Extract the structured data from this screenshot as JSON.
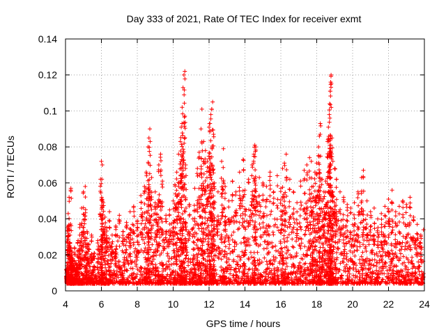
{
  "chart_data": {
    "type": "scatter",
    "title": "Day 333 of 2021, Rate Of TEC Index for receiver exmt",
    "xlabel": "GPS time / hours",
    "ylabel": "ROTI / TECUs",
    "xlim": [
      4,
      24
    ],
    "ylim": [
      0,
      0.14
    ],
    "xticks": [
      4,
      6,
      8,
      10,
      12,
      14,
      16,
      18,
      20,
      22,
      24
    ],
    "yticks": [
      0,
      0.02,
      0.04,
      0.06,
      0.08,
      0.1,
      0.12,
      0.14
    ],
    "xtick_labels": [
      "4",
      "6",
      "8",
      "10",
      "12",
      "14",
      "16",
      "18",
      "20",
      "22",
      "24"
    ],
    "ytick_labels": [
      "0",
      "0.02",
      "0.04",
      "0.06",
      "0.08",
      "0.1",
      "0.12",
      "0.14"
    ],
    "grid": true,
    "marker": "+",
    "marker_color": "#ff0000",
    "series": [
      {
        "name": "ROTI",
        "points": [
          [
            4.05,
            0.012
          ],
          [
            4.1,
            0.035
          ],
          [
            4.15,
            0.043
          ],
          [
            4.2,
            0.052
          ],
          [
            4.25,
            0.031
          ],
          [
            4.3,
            0.057
          ],
          [
            4.35,
            0.022
          ],
          [
            4.4,
            0.018
          ],
          [
            4.5,
            0.024
          ],
          [
            4.6,
            0.015
          ],
          [
            4.7,
            0.028
          ],
          [
            4.8,
            0.037
          ],
          [
            4.9,
            0.046
          ],
          [
            5.0,
            0.055
          ],
          [
            5.1,
            0.058
          ],
          [
            5.2,
            0.033
          ],
          [
            5.3,
            0.026
          ],
          [
            5.45,
            0.031
          ],
          [
            5.6,
            0.021
          ],
          [
            5.8,
            0.028
          ],
          [
            5.95,
            0.062
          ],
          [
            6.0,
            0.072
          ],
          [
            6.05,
            0.07
          ],
          [
            6.1,
            0.049
          ],
          [
            6.2,
            0.041
          ],
          [
            6.3,
            0.035
          ],
          [
            6.45,
            0.044
          ],
          [
            6.6,
            0.031
          ],
          [
            6.8,
            0.036
          ],
          [
            7.0,
            0.042
          ],
          [
            7.2,
            0.033
          ],
          [
            7.4,
            0.038
          ],
          [
            7.6,
            0.044
          ],
          [
            7.8,
            0.047
          ],
          [
            8.0,
            0.039
          ],
          [
            8.2,
            0.053
          ],
          [
            8.4,
            0.058
          ],
          [
            8.5,
            0.066
          ],
          [
            8.6,
            0.08
          ],
          [
            8.65,
            0.085
          ],
          [
            8.7,
            0.09
          ],
          [
            8.8,
            0.063
          ],
          [
            9.0,
            0.055
          ],
          [
            9.1,
            0.048
          ],
          [
            9.2,
            0.07
          ],
          [
            9.3,
            0.076
          ],
          [
            9.4,
            0.061
          ],
          [
            9.6,
            0.042
          ],
          [
            9.8,
            0.045
          ],
          [
            10.0,
            0.05
          ],
          [
            10.1,
            0.059
          ],
          [
            10.2,
            0.066
          ],
          [
            10.3,
            0.076
          ],
          [
            10.4,
            0.083
          ],
          [
            10.45,
            0.091
          ],
          [
            10.5,
            0.102
          ],
          [
            10.55,
            0.113
          ],
          [
            10.6,
            0.12
          ],
          [
            10.65,
            0.122
          ],
          [
            10.7,
            0.07
          ],
          [
            10.9,
            0.048
          ],
          [
            11.1,
            0.04
          ],
          [
            11.2,
            0.057
          ],
          [
            11.35,
            0.068
          ],
          [
            11.45,
            0.077
          ],
          [
            11.55,
            0.09
          ],
          [
            11.6,
            0.101
          ],
          [
            11.7,
            0.083
          ],
          [
            11.8,
            0.078
          ],
          [
            11.9,
            0.072
          ],
          [
            12.0,
            0.091
          ],
          [
            12.05,
            0.093
          ],
          [
            12.1,
            0.098
          ],
          [
            12.15,
            0.101
          ],
          [
            12.2,
            0.105
          ],
          [
            12.25,
            0.087
          ],
          [
            12.3,
            0.06
          ],
          [
            12.5,
            0.055
          ],
          [
            12.7,
            0.072
          ],
          [
            12.8,
            0.079
          ],
          [
            12.9,
            0.058
          ],
          [
            13.1,
            0.05
          ],
          [
            13.3,
            0.061
          ],
          [
            13.5,
            0.055
          ],
          [
            13.7,
            0.066
          ],
          [
            13.9,
            0.073
          ],
          [
            14.0,
            0.056
          ],
          [
            14.2,
            0.062
          ],
          [
            14.4,
            0.07
          ],
          [
            14.5,
            0.076
          ],
          [
            14.55,
            0.081
          ],
          [
            14.6,
            0.08
          ],
          [
            14.8,
            0.063
          ],
          [
            15.0,
            0.06
          ],
          [
            15.2,
            0.058
          ],
          [
            15.4,
            0.066
          ],
          [
            15.6,
            0.055
          ],
          [
            15.8,
            0.064
          ],
          [
            16.0,
            0.057
          ],
          [
            16.1,
            0.068
          ],
          [
            16.2,
            0.071
          ],
          [
            16.3,
            0.076
          ],
          [
            16.5,
            0.062
          ],
          [
            16.7,
            0.055
          ],
          [
            16.9,
            0.049
          ],
          [
            17.1,
            0.061
          ],
          [
            17.3,
            0.067
          ],
          [
            17.45,
            0.07
          ],
          [
            17.6,
            0.074
          ],
          [
            17.7,
            0.072
          ],
          [
            17.8,
            0.058
          ],
          [
            17.9,
            0.066
          ],
          [
            18.0,
            0.071
          ],
          [
            18.1,
            0.08
          ],
          [
            18.15,
            0.086
          ],
          [
            18.2,
            0.093
          ],
          [
            18.3,
            0.062
          ],
          [
            18.4,
            0.055
          ],
          [
            18.5,
            0.061
          ],
          [
            18.6,
            0.083
          ],
          [
            18.65,
            0.091
          ],
          [
            18.7,
            0.098
          ],
          [
            18.72,
            0.104
          ],
          [
            18.75,
            0.111
          ],
          [
            18.78,
            0.116
          ],
          [
            18.8,
            0.12
          ],
          [
            18.85,
            0.085
          ],
          [
            18.9,
            0.072
          ],
          [
            19.0,
            0.068
          ],
          [
            19.1,
            0.062
          ],
          [
            19.3,
            0.055
          ],
          [
            19.5,
            0.052
          ],
          [
            19.7,
            0.048
          ],
          [
            19.9,
            0.046
          ],
          [
            20.1,
            0.049
          ],
          [
            20.3,
            0.055
          ],
          [
            20.5,
            0.063
          ],
          [
            20.6,
            0.067
          ],
          [
            20.8,
            0.05
          ],
          [
            21.0,
            0.044
          ],
          [
            21.2,
            0.046
          ],
          [
            21.4,
            0.04
          ],
          [
            21.6,
            0.043
          ],
          [
            21.8,
            0.047
          ],
          [
            22.0,
            0.051
          ],
          [
            22.2,
            0.056
          ],
          [
            22.4,
            0.044
          ],
          [
            22.6,
            0.047
          ],
          [
            22.8,
            0.05
          ],
          [
            23.0,
            0.048
          ],
          [
            23.2,
            0.052
          ],
          [
            23.4,
            0.041
          ],
          [
            23.6,
            0.037
          ],
          [
            23.8,
            0.031
          ],
          [
            23.95,
            0.034
          ]
        ]
      }
    ]
  }
}
